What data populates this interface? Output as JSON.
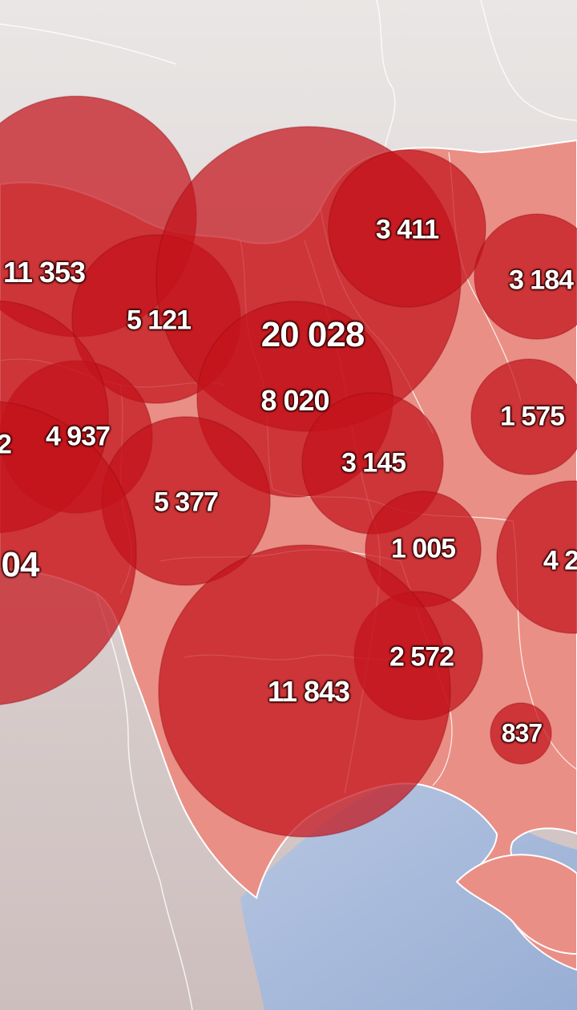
{
  "map": {
    "regions": [
      {
        "id": "region-1",
        "value": "11 353"
      },
      {
        "id": "region-2",
        "value": "5 121"
      },
      {
        "id": "region-3",
        "value": "20 028"
      },
      {
        "id": "region-4",
        "value": "3 411"
      },
      {
        "id": "region-5",
        "value": "3 184"
      },
      {
        "id": "region-6",
        "value": "8 020"
      },
      {
        "id": "region-7",
        "value": "4 937"
      },
      {
        "id": "region-8",
        "value": "2"
      },
      {
        "id": "region-9",
        "value": "3 145"
      },
      {
        "id": "region-10",
        "value": "1 575"
      },
      {
        "id": "region-11",
        "value": "5 377"
      },
      {
        "id": "region-12",
        "value": "1 005"
      },
      {
        "id": "region-13",
        "value": "04"
      },
      {
        "id": "region-14",
        "value": "4 2"
      },
      {
        "id": "region-15",
        "value": "2 572"
      },
      {
        "id": "region-16",
        "value": "11 843"
      },
      {
        "id": "region-17",
        "value": "837"
      }
    ],
    "colors": {
      "bubble": "#c4121a",
      "country_fill": "#ea8f86",
      "neighbor_fill": "#cfc6c4",
      "sea_fill": "#a9bbd9",
      "border": "#ffffff",
      "label": "#ffffff"
    }
  }
}
